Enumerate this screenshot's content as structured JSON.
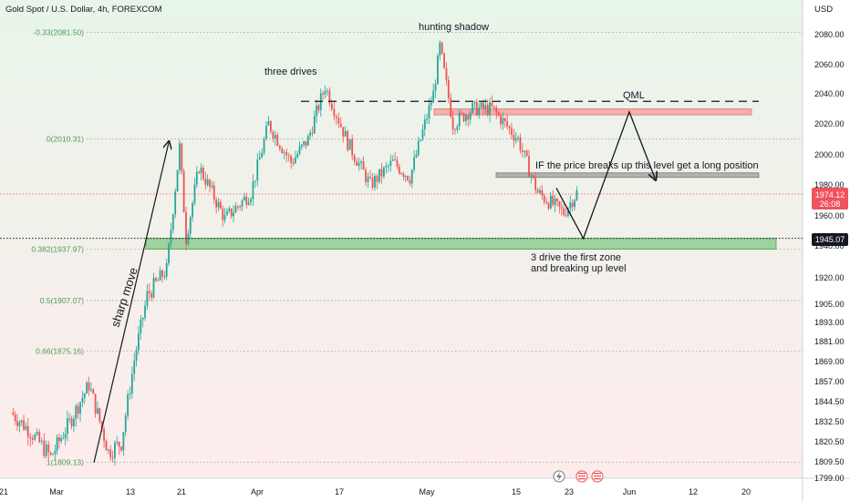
{
  "header": {
    "title": "Gold Spot / U.S. Dollar, 4h, FOREXCOM",
    "currency": "USD"
  },
  "price_tags": {
    "current": {
      "value": "1974.12",
      "countdown": "26:08",
      "color": "#f0525e"
    },
    "level": {
      "value": "1945.07",
      "color": "#131722"
    }
  },
  "fib_levels": [
    {
      "label": "-0.33(2081.50)",
      "price": 2081.5
    },
    {
      "label": "0(2010.31)",
      "price": 2010.31
    },
    {
      "label": "0.382(1937.97)",
      "price": 1937.97
    },
    {
      "label": "0.5(1907.07)",
      "price": 1907.07
    },
    {
      "label": "0.66(1875.16)",
      "price": 1875.16
    },
    {
      "label": "1(1809.13)",
      "price": 1809.13
    }
  ],
  "annotations": {
    "hunting_shadow": "hunting shadow",
    "three_drives": "three drives",
    "qml": "QML",
    "long_position": "IF the price breaks up this level get a long position",
    "zone_line1": "3 drive the first zone",
    "zone_line2": "and breaking up level",
    "sharp_move": "sharp move"
  },
  "icons": [
    "lightning-icon",
    "us-flag-icon",
    "us-flag-icon"
  ],
  "colors": {
    "bull": "#26a69a",
    "bear": "#ef5350",
    "zone_green": "#81c784",
    "zone_red": "#ef9a9a",
    "zone_grey": "#9e9e9e",
    "bg_top": "#e8f5e9",
    "bg_bottom": "#fdecec"
  },
  "chart_data": {
    "type": "candlestick",
    "title": "Gold Spot / U.S. Dollar, 4h, FOREXCOM",
    "ylabel": "USD",
    "ylim": [
      1795,
      2095
    ],
    "y_ticks": [
      2080,
      2060,
      2040,
      2020,
      2000,
      1980,
      1960,
      1940,
      1920,
      1905,
      1893,
      1881,
      1869,
      1857,
      1844.5,
      1832.5,
      1820.5,
      1809.5,
      1799
    ],
    "y_tick_labels": [
      "2080.00",
      "2060.00",
      "2040.00",
      "2020.00",
      "2000.00",
      "1980.00",
      "1960.00",
      "1940.00",
      "1920.00",
      "1905.00",
      "1893.00",
      "1881.00",
      "1869.00",
      "1857.00",
      "1844.50",
      "1832.50",
      "1820.50",
      "1809.50",
      "1799.00"
    ],
    "x_tick_labels": [
      "21",
      "Mar",
      "13",
      "21",
      "Apr",
      "17",
      "May",
      "15",
      "23",
      "Jun",
      "12",
      "20"
    ],
    "price_path": [
      {
        "date": "Feb 21",
        "price": 1838
      },
      {
        "date": "Feb 24",
        "price": 1828
      },
      {
        "date": "Feb 28",
        "price": 1812
      },
      {
        "date": "Mar 3",
        "price": 1832
      },
      {
        "date": "Mar 6",
        "price": 1855
      },
      {
        "date": "Mar 9",
        "price": 1815
      },
      {
        "date": "Mar 11",
        "price": 1820
      },
      {
        "date": "Mar 13",
        "price": 1870
      },
      {
        "date": "Mar 15",
        "price": 1910
      },
      {
        "date": "Mar 18",
        "price": 1925
      },
      {
        "date": "Mar 20",
        "price": 2005
      },
      {
        "date": "Mar 21",
        "price": 1945
      },
      {
        "date": "Mar 23",
        "price": 1992
      },
      {
        "date": "Mar 27",
        "price": 1958
      },
      {
        "date": "Mar 31",
        "price": 1975
      },
      {
        "date": "Apr 3",
        "price": 2020
      },
      {
        "date": "Apr 7",
        "price": 1995
      },
      {
        "date": "Apr 10",
        "price": 2010
      },
      {
        "date": "Apr 13",
        "price": 2045
      },
      {
        "date": "Apr 17",
        "price": 2008
      },
      {
        "date": "Apr 21",
        "price": 1980
      },
      {
        "date": "Apr 25",
        "price": 1995
      },
      {
        "date": "Apr 28",
        "price": 1985
      },
      {
        "date": "May 2",
        "price": 2040
      },
      {
        "date": "May 3",
        "price": 2072
      },
      {
        "date": "May 5",
        "price": 2020
      },
      {
        "date": "May 8",
        "price": 2030
      },
      {
        "date": "May 11",
        "price": 2030
      },
      {
        "date": "May 15",
        "price": 2010
      },
      {
        "date": "May 18",
        "price": 1975
      },
      {
        "date": "May 22",
        "price": 1962
      },
      {
        "date": "May 24",
        "price": 1975
      }
    ],
    "horizontal_lines": [
      {
        "name": "QML",
        "price": 2035,
        "style": "dashed"
      },
      {
        "name": "level",
        "price": 1945.07,
        "style": "dotted"
      }
    ],
    "zones": [
      {
        "name": "QML zone",
        "price_top": 2030,
        "price_bottom": 2026,
        "color": "red"
      },
      {
        "name": "long position level",
        "price_top": 1988,
        "price_bottom": 1985,
        "color": "grey"
      },
      {
        "name": "first zone",
        "price_top": 1945,
        "price_bottom": 1938,
        "color": "green"
      }
    ],
    "projection": [
      {
        "date": "May 25",
        "price": 1945
      },
      {
        "date": "Jun 1",
        "price": 2028
      },
      {
        "date": "Jun 5",
        "price": 1984
      }
    ],
    "grid": false
  }
}
